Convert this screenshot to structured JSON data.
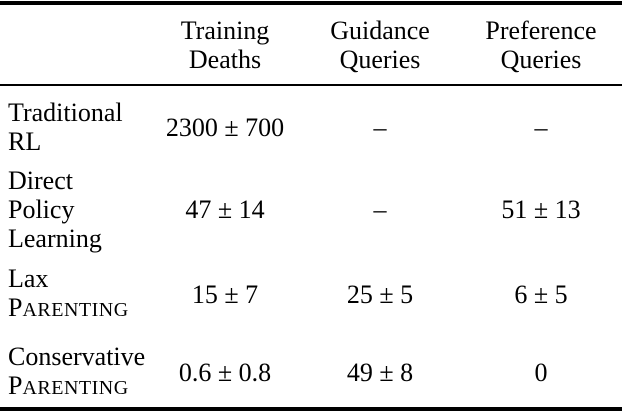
{
  "colors": {
    "text": "#000000",
    "background": "#ffffff",
    "rule": "#000000"
  },
  "header": {
    "training": {
      "line1": "Training",
      "line2": "Deaths"
    },
    "guidance": {
      "line1": "Guidance",
      "line2": "Queries"
    },
    "preference": {
      "line1": "Preference",
      "line2": "Queries"
    }
  },
  "rows": [
    {
      "label1": "Traditional",
      "label2": "RL",
      "training_deaths": "2300 ± 700",
      "guidance_queries": "–",
      "preference_queries": "–"
    },
    {
      "label1": "Direct",
      "label2": "Policy",
      "label3": "Learning",
      "training_deaths": "47 ± 14",
      "guidance_queries": "–",
      "preference_queries": "51 ± 13"
    },
    {
      "label1": "Lax",
      "sc_initial": "P",
      "sc_rest": "ARENTING",
      "training_deaths": "15 ± 7",
      "guidance_queries": "25 ± 5",
      "preference_queries": "6 ± 5"
    },
    {
      "label1": "Conservative",
      "sc_initial": "P",
      "sc_rest": "ARENTING",
      "training_deaths": "0.6 ± 0.8",
      "guidance_queries": "49 ± 8",
      "preference_queries": "0"
    }
  ]
}
